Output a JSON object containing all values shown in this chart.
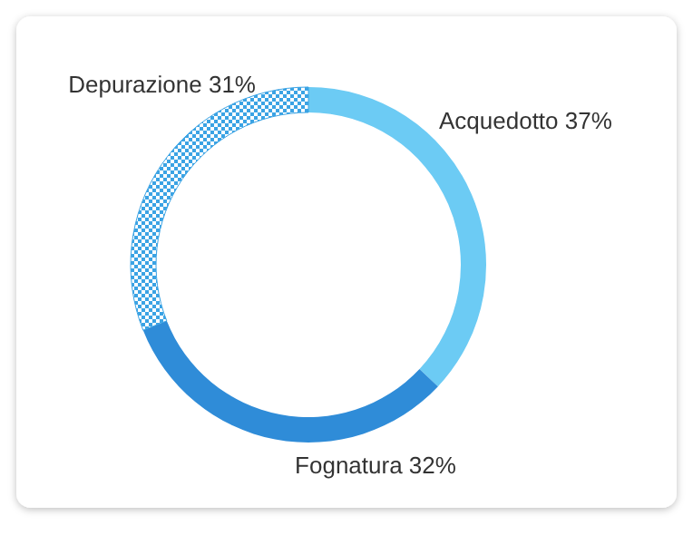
{
  "chart_data": {
    "type": "donut",
    "categories": [
      "Acquedotto",
      "Fognatura",
      "Depurazione"
    ],
    "values": [
      37,
      32,
      31
    ],
    "value_labels": [
      "37%",
      "32%",
      "31%"
    ],
    "colors": [
      "#6ccbf4",
      "#2f8cd8",
      "#3ba3e4"
    ]
  }
}
